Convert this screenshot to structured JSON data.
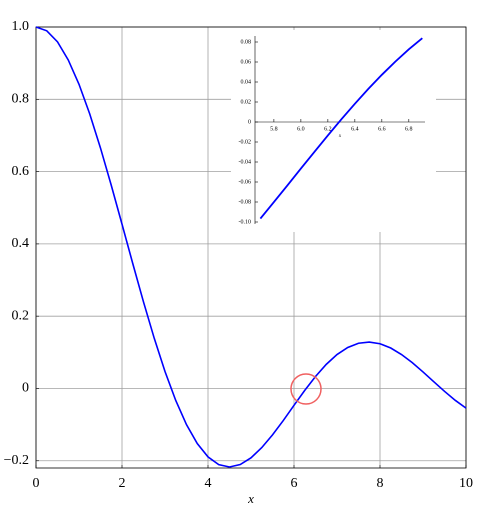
{
  "chart_data": [
    {
      "type": "line",
      "xlabel": "x",
      "x": [
        0,
        0.25,
        0.5,
        0.75,
        1,
        1.25,
        1.5,
        1.75,
        2,
        2.25,
        2.5,
        2.75,
        3,
        3.25,
        3.5,
        3.75,
        4,
        4.25,
        4.5,
        4.75,
        5,
        5.25,
        5.5,
        5.75,
        6,
        6.25,
        6.5,
        6.75,
        7,
        7.25,
        7.5,
        7.75,
        8,
        8.25,
        8.5,
        8.75,
        9,
        9.25,
        9.5,
        9.75,
        10
      ],
      "values": [
        1,
        0.9896,
        0.9589,
        0.9089,
        0.8415,
        0.7592,
        0.665,
        0.5623,
        0.4546,
        0.3458,
        0.2394,
        0.1388,
        0.047,
        -0.0333,
        -0.1002,
        -0.1524,
        -0.1892,
        -0.2106,
        -0.2172,
        -0.2104,
        -0.1918,
        -0.1636,
        -0.1283,
        -0.0888,
        -0.0466,
        -0.0053,
        0.0331,
        0.0667,
        0.0939,
        0.1135,
        0.1251,
        0.1283,
        0.1237,
        0.1119,
        0.0939,
        0.0714,
        0.0458,
        0.0188,
        -0.0079,
        -0.0328,
        -0.0544
      ],
      "color": "#0000ff",
      "xlim": [
        0,
        10
      ],
      "ylim": [
        -0.22,
        1.0
      ],
      "xticks": [
        0,
        2,
        4,
        6,
        8,
        10
      ],
      "yticks": [
        {
          "value": 1,
          "label": "1.0"
        },
        0.8,
        0.6,
        0.4,
        0.2,
        0,
        {
          "value": -0.2,
          "label": "−0.2"
        }
      ],
      "grid": true
    },
    {
      "type": "line",
      "xlabel": "x",
      "x": [
        5.7,
        5.8,
        5.9,
        6.0,
        6.1,
        6.2,
        6.3,
        6.4,
        6.5,
        6.6,
        6.7,
        6.8,
        6.9
      ],
      "values": [
        -0.0966,
        -0.0801,
        -0.0634,
        -0.0466,
        -0.0299,
        -0.0134,
        0.0027,
        0.0182,
        0.0331,
        0.0472,
        0.0604,
        0.0727,
        0.0838
      ],
      "color": "#0000ff",
      "xlim": [
        5.66,
        6.92
      ],
      "ylim": [
        -0.102,
        0.086
      ],
      "xticks": [
        5.8,
        {
          "value": 6,
          "label": "6.0"
        },
        6.2,
        6.4,
        6.6,
        6.8
      ],
      "yticks": [
        0.08,
        0.06,
        0.04,
        0.02,
        0,
        -0.02,
        -0.04,
        -0.06,
        -0.08,
        {
          "value": -0.1,
          "label": "-0.10"
        }
      ],
      "grid": false
    }
  ]
}
